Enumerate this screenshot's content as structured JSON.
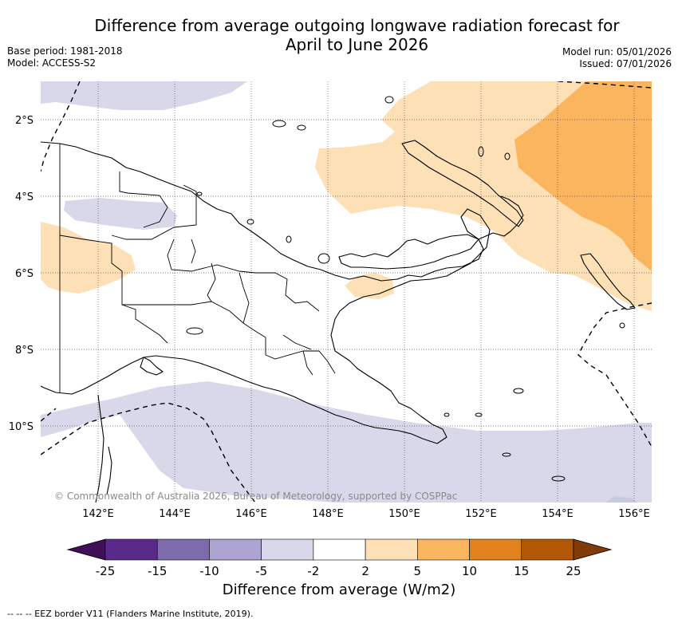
{
  "title_line1": "Difference from average outgoing longwave radiation forecast for",
  "title_line2": "April to June 2026",
  "base_period": "Base period: 1981-2018",
  "model": "Model: ACCESS-S2",
  "model_run": "Model run: 05/01/2026",
  "issued": "Issued: 07/01/2026",
  "lat_labels": [
    "2°S",
    "4°S",
    "6°S",
    "8°S",
    "10°S"
  ],
  "lon_labels": [
    "142°E",
    "144°E",
    "146°E",
    "148°E",
    "150°E",
    "152°E",
    "154°E",
    "156°E"
  ],
  "copyright": "© Commonwealth of Australia 2026, Bureau of Meteorology, supported by COSPPac",
  "colorbar": {
    "ticks": [
      "-25",
      "-15",
      "-10",
      "-5",
      "-2",
      "2",
      "5",
      "10",
      "15",
      "25"
    ],
    "colors": [
      "#3f0f57",
      "#5a2a8a",
      "#7d6bab",
      "#aca3d0",
      "#d8d8ea",
      "#ffffff",
      "#fde0b6",
      "#fbb55f",
      "#e2821c",
      "#b35806",
      "#7f3b08"
    ],
    "label": "Difference from average (W/m2)"
  },
  "legend_note": "-- -- -- EEZ border V11 (Flanders Marine Institute, 2019)."
}
